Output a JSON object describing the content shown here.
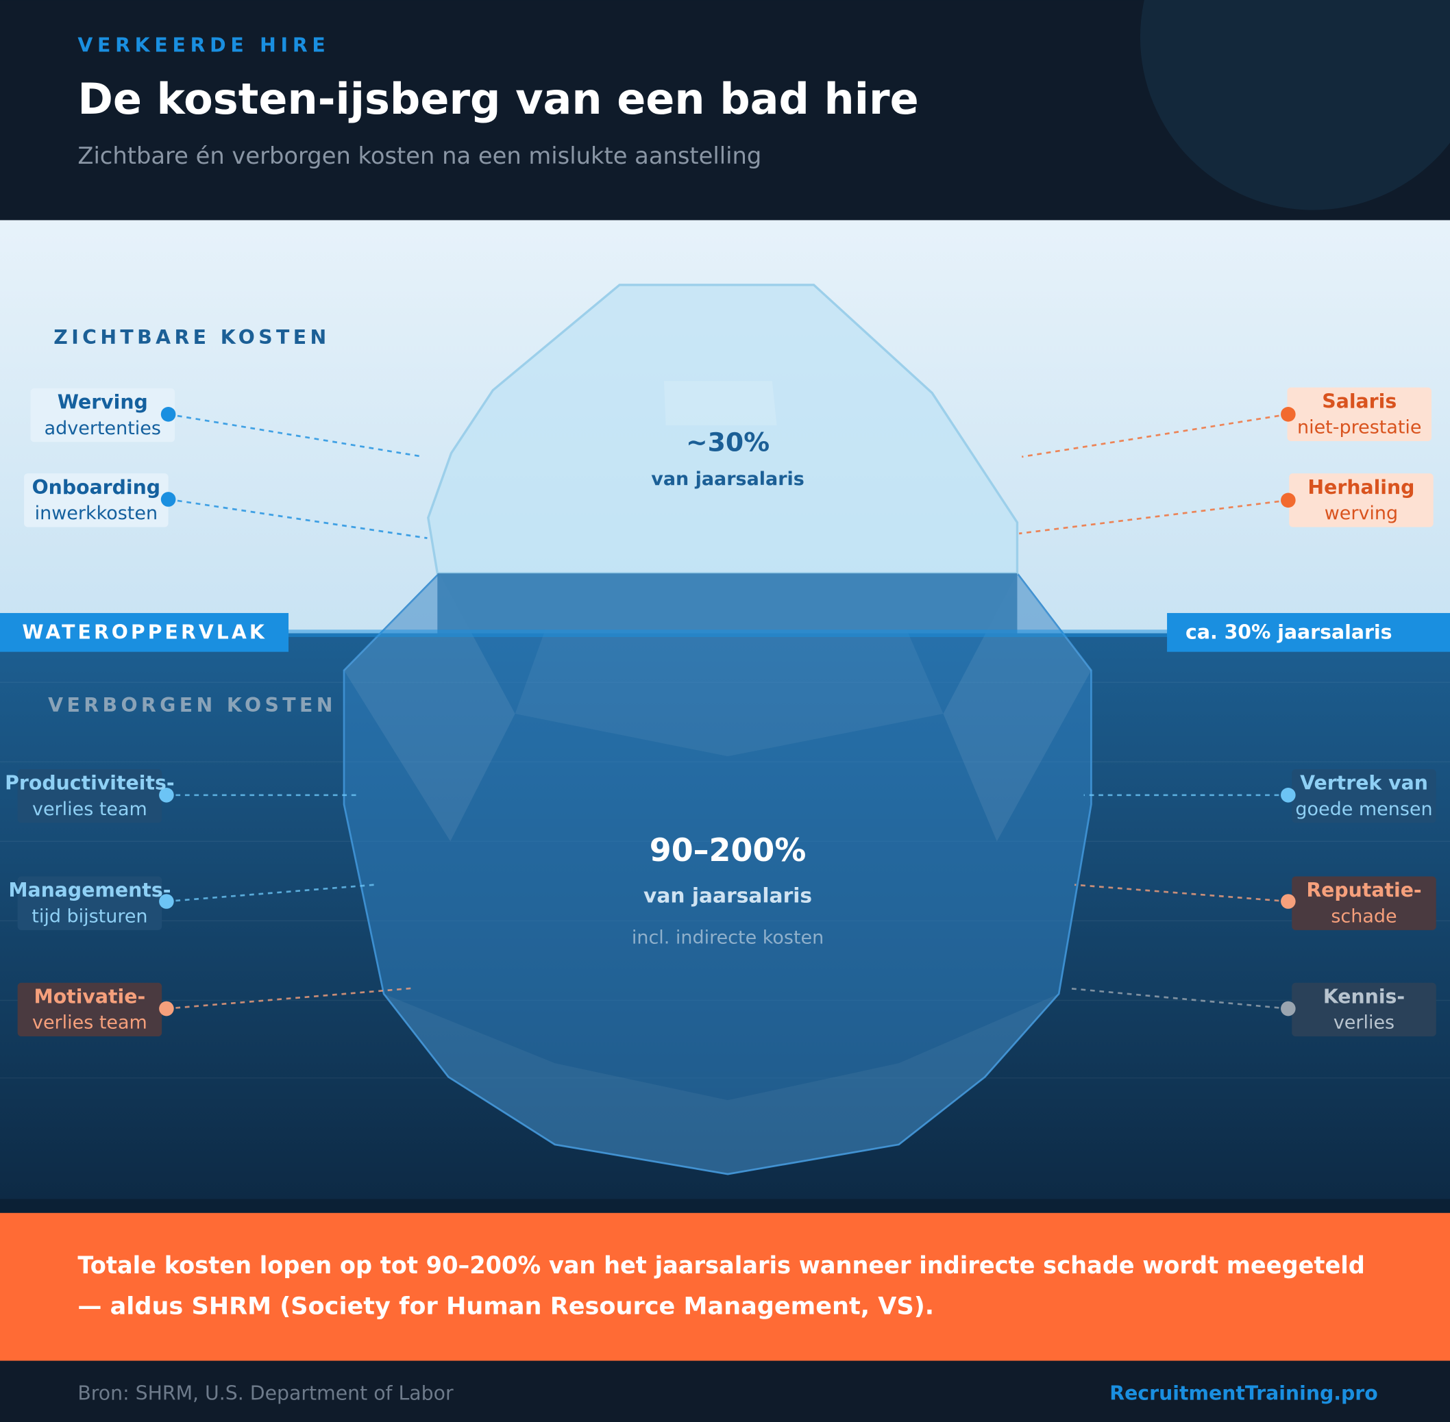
{
  "header": {
    "kicker": "VERKEERDE HIRE",
    "title": "De kosten-ijsberg van een bad hire",
    "subtitle": "Zichtbare én verborgen kosten na een mislukte aanstelling"
  },
  "visible": {
    "heading": "ZICHTBARE KOSTEN",
    "tip": {
      "value": "~30%",
      "label": "van jaarsalaris"
    },
    "left": [
      [
        "Werving",
        "advertenties"
      ],
      [
        "Onboarding",
        "inwerkkosten"
      ]
    ],
    "right": [
      [
        "Salaris",
        "niet-prestatie"
      ],
      [
        "Herhaling",
        "werving"
      ]
    ]
  },
  "waterline": {
    "label": "WATEROPPERVLAK",
    "value": "ca. 30% jaarsalaris"
  },
  "hidden": {
    "heading": "VERBORGEN KOSTEN",
    "body": {
      "value": "90–200%",
      "label": "van jaarsalaris",
      "note": "incl. indirecte kosten"
    },
    "left": [
      [
        "Productiviteits-",
        "verlies team"
      ],
      [
        "Managements-",
        "tijd bijsturen"
      ],
      [
        "Motivatie-",
        "verlies team"
      ]
    ],
    "right": [
      [
        "Vertrek van",
        "goede mensen"
      ],
      [
        "Reputatie-",
        "schade"
      ],
      [
        "Kennis-",
        "verlies"
      ]
    ]
  },
  "banner": {
    "lines": [
      "Totale kosten lopen op tot 90–200% van het jaarsalaris wanneer indirecte schade wordt meegeteld",
      "— aldus SHRM (Society for Human Resource Management, VS)."
    ]
  },
  "footer": {
    "source": "Bron: SHRM, U.S. Department of Labor",
    "brand": "RecruitmentTraining.pro"
  }
}
